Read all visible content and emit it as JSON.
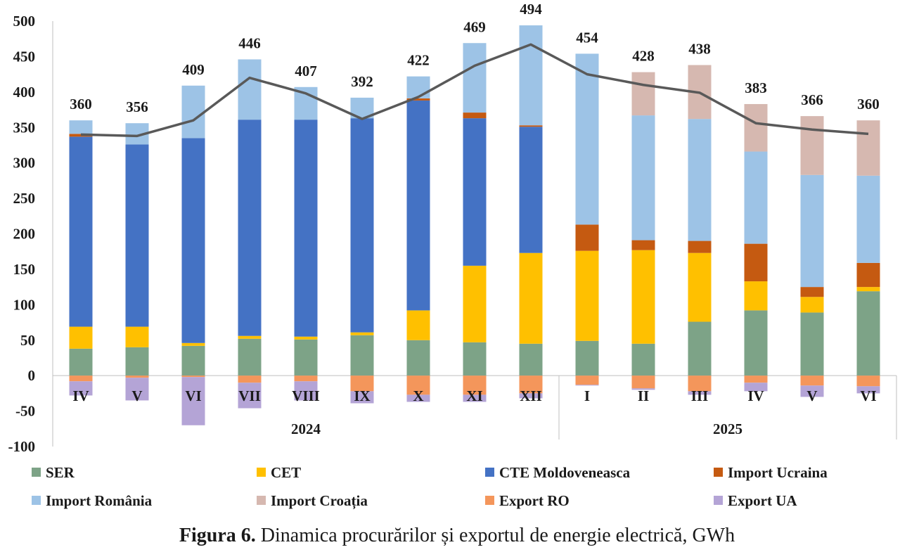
{
  "chart_data": {
    "type": "bar",
    "stacked": true,
    "categories": [
      "IV",
      "V",
      "VI",
      "VII",
      "VIII",
      "IX",
      "X",
      "XI",
      "XII",
      "I",
      "II",
      "III",
      "IV",
      "V",
      "VI"
    ],
    "groups": [
      {
        "label": "2024",
        "categories": [
          "IV",
          "V",
          "VI",
          "VII",
          "VIII",
          "IX",
          "X",
          "XI",
          "XII"
        ]
      },
      {
        "label": "2025",
        "categories": [
          "I",
          "II",
          "III",
          "IV",
          "V",
          "VI"
        ]
      }
    ],
    "ylim": [
      -100,
      500
    ],
    "yticks": [
      -100,
      -50,
      0,
      50,
      100,
      150,
      200,
      250,
      300,
      350,
      400,
      450,
      500
    ],
    "series": [
      {
        "name": "SER",
        "color": "#7da387",
        "values": [
          38,
          40,
          42,
          52,
          51,
          57,
          50,
          47,
          45,
          49,
          45,
          76,
          92,
          89,
          119
        ]
      },
      {
        "name": "CET",
        "color": "#ffc000",
        "values": [
          31,
          29,
          4,
          4,
          4,
          4,
          42,
          108,
          128,
          127,
          132,
          97,
          41,
          22,
          6
        ]
      },
      {
        "name": "CTE Moldoveneasca",
        "color": "#4472c4",
        "values": [
          268,
          257,
          289,
          305,
          306,
          302,
          296,
          208,
          178,
          0,
          0,
          0,
          0,
          0,
          0
        ]
      },
      {
        "name": "Import Ucraina",
        "color": "#c55a11",
        "values": [
          4,
          0,
          0,
          0,
          0,
          0,
          3,
          8,
          2,
          37,
          14,
          17,
          53,
          14,
          34
        ]
      },
      {
        "name": "Import România",
        "color": "#9dc3e6",
        "values": [
          19,
          30,
          74,
          85,
          46,
          29,
          31,
          98,
          141,
          241,
          176,
          172,
          130,
          158,
          123
        ]
      },
      {
        "name": "Import Croația",
        "color": "#d6b8b0",
        "values": [
          0,
          0,
          0,
          0,
          0,
          0,
          0,
          0,
          0,
          0,
          61,
          76,
          67,
          83,
          78
        ]
      },
      {
        "name": "Export RO",
        "color": "#f4965b",
        "values": [
          -8,
          -3,
          -2,
          -10,
          -8,
          -22,
          -27,
          -27,
          -25,
          -13,
          -18,
          -22,
          -10,
          -14,
          -15
        ]
      },
      {
        "name": "Export UA",
        "color": "#b4a4d6",
        "values": [
          -20,
          -32,
          -68,
          -36,
          -27,
          -17,
          -10,
          -10,
          -7,
          -1,
          -2,
          -5,
          -12,
          -16,
          -10
        ]
      }
    ],
    "line": {
      "name": "",
      "color": "#595959",
      "values": [
        340,
        338,
        360,
        420,
        398,
        362,
        393,
        437,
        467,
        425,
        410,
        399,
        356,
        347,
        341
      ]
    },
    "totals": [
      360,
      356,
      409,
      446,
      407,
      392,
      422,
      469,
      494,
      454,
      428,
      438,
      383,
      366,
      360
    ],
    "title": "",
    "xlabel": "",
    "ylabel": "",
    "grid": false,
    "legend_position": "bottom"
  },
  "caption": {
    "bold": "Figura 6.",
    "text": " Dinamica procurărilor și exportul de energie electrică, GWh"
  }
}
